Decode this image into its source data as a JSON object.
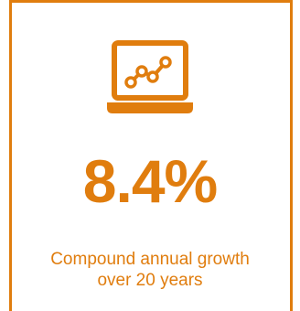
{
  "colors": {
    "accent": "#e07d0e",
    "background": "#ffffff"
  },
  "icon": {
    "name": "laptop-line-chart-icon"
  },
  "stat": {
    "value": "8.4%"
  },
  "caption": {
    "line1": "Compound annual growth",
    "line2": "over 20 years"
  }
}
